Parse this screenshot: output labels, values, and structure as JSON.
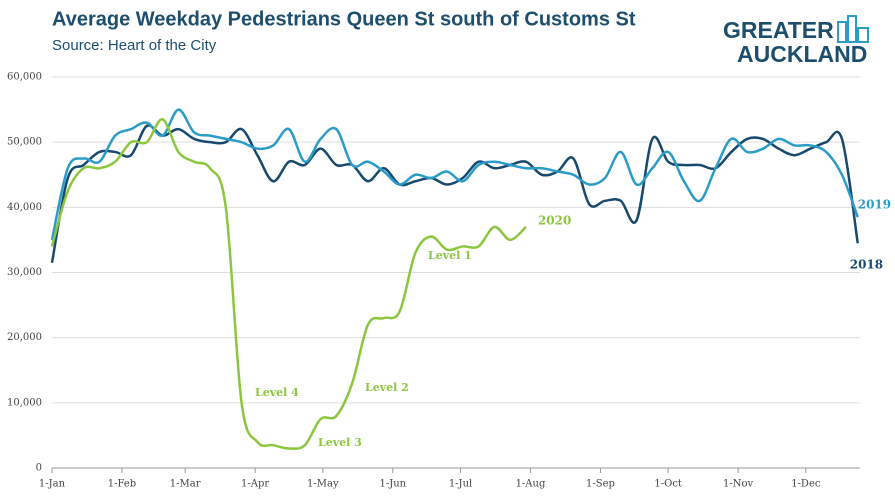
{
  "chart_data": {
    "type": "line",
    "title": "Average Weekday Pedestrians Queen St south of Customs St",
    "subtitle": "Source: Heart of the City",
    "logo": [
      "GREATER",
      "AUCKLAND"
    ],
    "xlim": [
      0,
      358
    ],
    "xticks": [
      {
        "value": 0,
        "label": "1-Jan"
      },
      {
        "value": 31,
        "label": "1-Feb"
      },
      {
        "value": 59,
        "label": "1-Mar"
      },
      {
        "value": 90,
        "label": "1-Apr"
      },
      {
        "value": 120,
        "label": "1-May"
      },
      {
        "value": 151,
        "label": "1-Jun"
      },
      {
        "value": 181,
        "label": "1-Jul"
      },
      {
        "value": 212,
        "label": "1-Aug"
      },
      {
        "value": 243,
        "label": "1-Sep"
      },
      {
        "value": 273,
        "label": "1-Oct"
      },
      {
        "value": 304,
        "label": "1-Nov"
      },
      {
        "value": 334,
        "label": "1-Dec"
      }
    ],
    "ylim": [
      0,
      60000
    ],
    "yticks": [
      0,
      {
        "value": 10000,
        "label": "10,000"
      },
      {
        "value": 20000,
        "label": "20,000"
      },
      {
        "value": 30000,
        "label": "30,000"
      },
      {
        "value": 40000,
        "label": "40,000"
      },
      {
        "value": 50000,
        "label": "50,000"
      },
      {
        "value": 60000,
        "label": "60,000"
      }
    ],
    "grid": true,
    "x": [
      0,
      7,
      14,
      21,
      28,
      35,
      42,
      49,
      56,
      63,
      70,
      77,
      84,
      91,
      98,
      105,
      112,
      119,
      126,
      133,
      140,
      147,
      154,
      161,
      168,
      175,
      182,
      189,
      196,
      203,
      210,
      217,
      224,
      231,
      238,
      245,
      252,
      259,
      266,
      273,
      280,
      287,
      294,
      301,
      308,
      315,
      322,
      329,
      336,
      343,
      350,
      357
    ],
    "series": [
      {
        "name": "2018",
        "color": "#174a6e",
        "values": [
          31500,
          44500,
          46500,
          48500,
          48500,
          48000,
          52500,
          51000,
          52000,
          50500,
          50000,
          50000,
          52000,
          48000,
          44000,
          47000,
          46500,
          49000,
          46500,
          46500,
          44000,
          46000,
          43500,
          44000,
          44500,
          43500,
          44500,
          47000,
          46000,
          46500,
          47000,
          45000,
          45500,
          47500,
          40500,
          41000,
          41000,
          38000,
          50500,
          47000,
          46500,
          46500,
          46000,
          48500,
          50500,
          50500,
          49000,
          48000,
          49000,
          50000,
          50500,
          34500
        ]
      },
      {
        "name": "2019",
        "color": "#2b9cc7",
        "values": [
          35000,
          46000,
          47500,
          47000,
          51000,
          52000,
          53000,
          51000,
          55000,
          51500,
          51000,
          50500,
          50000,
          49000,
          49500,
          52000,
          47000,
          50500,
          52000,
          46500,
          47000,
          45500,
          43500,
          45000,
          44500,
          45500,
          44000,
          46500,
          47000,
          46500,
          46000,
          46000,
          45500,
          45000,
          43500,
          44500,
          48500,
          43500,
          46000,
          48500,
          44000,
          41000,
          46000,
          50500,
          48500,
          49000,
          50500,
          49500,
          49500,
          48500,
          45000,
          38500
        ]
      },
      {
        "name": "2020",
        "color": "#8cc63f",
        "values": [
          34000,
          42500,
          46000,
          46000,
          47000,
          50000,
          50000,
          53500,
          48500,
          47000,
          46000,
          40000,
          10000,
          4000,
          3500,
          3000,
          3500,
          7500,
          8000,
          13000,
          22000,
          23000,
          24000,
          33000,
          35500,
          33500,
          34000,
          34000,
          37000,
          35000,
          37000,
          null,
          null,
          null,
          null,
          null,
          null,
          null,
          null,
          null,
          null,
          null,
          null,
          null,
          null,
          null,
          null,
          null,
          null,
          null,
          null,
          null
        ]
      }
    ],
    "annotations": [
      "Level 4",
      "Level 3",
      "Level 2",
      "Level 1"
    ]
  }
}
